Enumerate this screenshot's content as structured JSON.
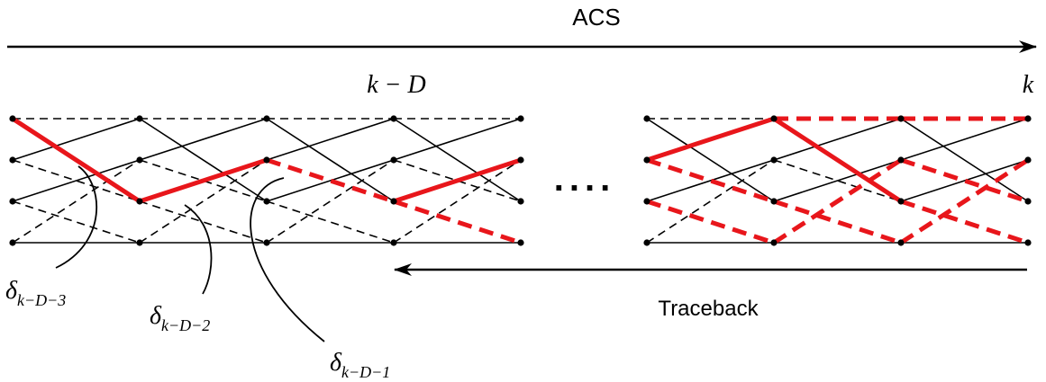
{
  "diagram": {
    "top_arrow_label": "ACS",
    "bottom_arrow_label": "Traceback",
    "stage_labels": {
      "k_minus_D": "k − D",
      "k": "k"
    },
    "ellipsis": "....",
    "delta_labels": [
      {
        "symbol": "δ",
        "subscript": "k−D−3"
      },
      {
        "symbol": "δ",
        "subscript": "k−D−2"
      },
      {
        "symbol": "δ",
        "subscript": "k−D−1"
      }
    ],
    "colors": {
      "trellis": "#000000",
      "survivor_path": "#e8161b",
      "node": "#000000"
    },
    "trellis_blocks": [
      {
        "name": "left",
        "stages": 5,
        "states": 4,
        "branches": [
          {
            "from_stage": 0,
            "to_stage": 1,
            "from_state": 0,
            "to_state": 0,
            "style": "dashed",
            "highlight": false
          },
          {
            "from_stage": 0,
            "to_stage": 1,
            "from_state": 0,
            "to_state": 2,
            "style": "solid",
            "highlight": true
          },
          {
            "from_stage": 0,
            "to_stage": 1,
            "from_state": 1,
            "to_state": 0,
            "style": "solid",
            "highlight": false
          },
          {
            "from_stage": 0,
            "to_stage": 1,
            "from_state": 1,
            "to_state": 2,
            "style": "dashed",
            "highlight": false
          },
          {
            "from_stage": 0,
            "to_stage": 1,
            "from_state": 2,
            "to_state": 1,
            "style": "solid",
            "highlight": false
          },
          {
            "from_stage": 0,
            "to_stage": 1,
            "from_state": 2,
            "to_state": 3,
            "style": "dashed",
            "highlight": false
          },
          {
            "from_stage": 0,
            "to_stage": 1,
            "from_state": 3,
            "to_state": 1,
            "style": "dashed",
            "highlight": false
          },
          {
            "from_stage": 0,
            "to_stage": 1,
            "from_state": 3,
            "to_state": 3,
            "style": "solid",
            "highlight": false
          },
          {
            "from_stage": 1,
            "to_stage": 2,
            "from_state": 0,
            "to_state": 0,
            "style": "dashed",
            "highlight": false
          },
          {
            "from_stage": 1,
            "to_stage": 2,
            "from_state": 0,
            "to_state": 2,
            "style": "solid",
            "highlight": false
          },
          {
            "from_stage": 1,
            "to_stage": 2,
            "from_state": 1,
            "to_state": 0,
            "style": "solid",
            "highlight": false
          },
          {
            "from_stage": 1,
            "to_stage": 2,
            "from_state": 1,
            "to_state": 2,
            "style": "dashed",
            "highlight": false
          },
          {
            "from_stage": 1,
            "to_stage": 2,
            "from_state": 2,
            "to_state": 1,
            "style": "solid",
            "highlight": true
          },
          {
            "from_stage": 1,
            "to_stage": 2,
            "from_state": 2,
            "to_state": 3,
            "style": "dashed",
            "highlight": false
          },
          {
            "from_stage": 1,
            "to_stage": 2,
            "from_state": 3,
            "to_state": 1,
            "style": "dashed",
            "highlight": false
          },
          {
            "from_stage": 1,
            "to_stage": 2,
            "from_state": 3,
            "to_state": 3,
            "style": "solid",
            "highlight": false
          },
          {
            "from_stage": 2,
            "to_stage": 3,
            "from_state": 0,
            "to_state": 0,
            "style": "dashed",
            "highlight": false
          },
          {
            "from_stage": 2,
            "to_stage": 3,
            "from_state": 0,
            "to_state": 2,
            "style": "solid",
            "highlight": false
          },
          {
            "from_stage": 2,
            "to_stage": 3,
            "from_state": 1,
            "to_state": 0,
            "style": "solid",
            "highlight": false
          },
          {
            "from_stage": 2,
            "to_stage": 3,
            "from_state": 1,
            "to_state": 2,
            "style": "dashed",
            "highlight": true
          },
          {
            "from_stage": 2,
            "to_stage": 3,
            "from_state": 2,
            "to_state": 1,
            "style": "solid",
            "highlight": false
          },
          {
            "from_stage": 2,
            "to_stage": 3,
            "from_state": 2,
            "to_state": 3,
            "style": "dashed",
            "highlight": false
          },
          {
            "from_stage": 2,
            "to_stage": 3,
            "from_state": 3,
            "to_state": 1,
            "style": "dashed",
            "highlight": false
          },
          {
            "from_stage": 2,
            "to_stage": 3,
            "from_state": 3,
            "to_state": 3,
            "style": "solid",
            "highlight": false
          },
          {
            "from_stage": 3,
            "to_stage": 4,
            "from_state": 0,
            "to_state": 0,
            "style": "dashed",
            "highlight": false
          },
          {
            "from_stage": 3,
            "to_stage": 4,
            "from_state": 0,
            "to_state": 2,
            "style": "solid",
            "highlight": false
          },
          {
            "from_stage": 3,
            "to_stage": 4,
            "from_state": 1,
            "to_state": 0,
            "style": "solid",
            "highlight": false
          },
          {
            "from_stage": 3,
            "to_stage": 4,
            "from_state": 1,
            "to_state": 2,
            "style": "dashed",
            "highlight": false
          },
          {
            "from_stage": 3,
            "to_stage": 4,
            "from_state": 2,
            "to_state": 1,
            "style": "solid",
            "highlight": true
          },
          {
            "from_stage": 3,
            "to_stage": 4,
            "from_state": 2,
            "to_state": 3,
            "style": "dashed",
            "highlight": true
          },
          {
            "from_stage": 3,
            "to_stage": 4,
            "from_state": 3,
            "to_state": 1,
            "style": "dashed",
            "highlight": false
          },
          {
            "from_stage": 3,
            "to_stage": 4,
            "from_state": 3,
            "to_state": 3,
            "style": "solid",
            "highlight": false
          }
        ]
      },
      {
        "name": "right",
        "stages": 4,
        "states": 4,
        "branches": [
          {
            "from_stage": 0,
            "to_stage": 1,
            "from_state": 0,
            "to_state": 0,
            "style": "dashed",
            "highlight": false
          },
          {
            "from_stage": 0,
            "to_stage": 1,
            "from_state": 0,
            "to_state": 2,
            "style": "solid",
            "highlight": false
          },
          {
            "from_stage": 0,
            "to_stage": 1,
            "from_state": 1,
            "to_state": 0,
            "style": "solid",
            "highlight": true
          },
          {
            "from_stage": 0,
            "to_stage": 1,
            "from_state": 1,
            "to_state": 2,
            "style": "dashed",
            "highlight": true
          },
          {
            "from_stage": 0,
            "to_stage": 1,
            "from_state": 2,
            "to_state": 1,
            "style": "solid",
            "highlight": false
          },
          {
            "from_stage": 0,
            "to_stage": 1,
            "from_state": 2,
            "to_state": 3,
            "style": "dashed",
            "highlight": true
          },
          {
            "from_stage": 0,
            "to_stage": 1,
            "from_state": 3,
            "to_state": 1,
            "style": "dashed",
            "highlight": false
          },
          {
            "from_stage": 0,
            "to_stage": 1,
            "from_state": 3,
            "to_state": 3,
            "style": "solid",
            "highlight": false
          },
          {
            "from_stage": 1,
            "to_stage": 2,
            "from_state": 0,
            "to_state": 0,
            "style": "dashed",
            "highlight": true
          },
          {
            "from_stage": 1,
            "to_stage": 2,
            "from_state": 0,
            "to_state": 2,
            "style": "solid",
            "highlight": true
          },
          {
            "from_stage": 1,
            "to_stage": 2,
            "from_state": 1,
            "to_state": 0,
            "style": "solid",
            "highlight": false
          },
          {
            "from_stage": 1,
            "to_stage": 2,
            "from_state": 1,
            "to_state": 2,
            "style": "dashed",
            "highlight": false
          },
          {
            "from_stage": 1,
            "to_stage": 2,
            "from_state": 2,
            "to_state": 1,
            "style": "solid",
            "highlight": false
          },
          {
            "from_stage": 1,
            "to_stage": 2,
            "from_state": 2,
            "to_state": 3,
            "style": "dashed",
            "highlight": true
          },
          {
            "from_stage": 1,
            "to_stage": 2,
            "from_state": 3,
            "to_state": 1,
            "style": "dashed",
            "highlight": true
          },
          {
            "from_stage": 1,
            "to_stage": 2,
            "from_state": 3,
            "to_state": 3,
            "style": "solid",
            "highlight": false
          },
          {
            "from_stage": 2,
            "to_stage": 3,
            "from_state": 0,
            "to_state": 0,
            "style": "dashed",
            "highlight": true
          },
          {
            "from_stage": 2,
            "to_stage": 3,
            "from_state": 0,
            "to_state": 2,
            "style": "solid",
            "highlight": false
          },
          {
            "from_stage": 2,
            "to_stage": 3,
            "from_state": 1,
            "to_state": 0,
            "style": "solid",
            "highlight": false
          },
          {
            "from_stage": 2,
            "to_stage": 3,
            "from_state": 1,
            "to_state": 2,
            "style": "dashed",
            "highlight": true
          },
          {
            "from_stage": 2,
            "to_stage": 3,
            "from_state": 2,
            "to_state": 1,
            "style": "solid",
            "highlight": false
          },
          {
            "from_stage": 2,
            "to_stage": 3,
            "from_state": 2,
            "to_state": 3,
            "style": "dashed",
            "highlight": true
          },
          {
            "from_stage": 2,
            "to_stage": 3,
            "from_state": 3,
            "to_state": 1,
            "style": "dashed",
            "highlight": true
          },
          {
            "from_stage": 2,
            "to_stage": 3,
            "from_state": 3,
            "to_state": 3,
            "style": "solid",
            "highlight": false
          }
        ]
      }
    ]
  }
}
